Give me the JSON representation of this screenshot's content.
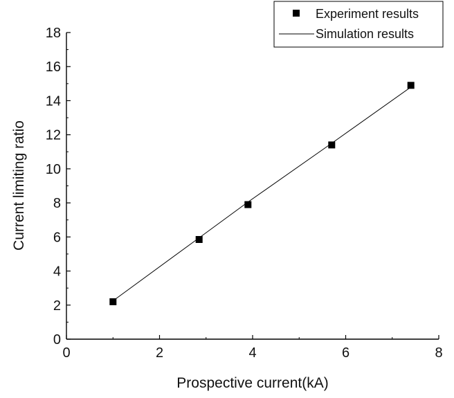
{
  "chart_data": {
    "type": "scatter",
    "xlabel": "Prospective current(kA)",
    "ylabel": "Current limiting ratio",
    "xlim": [
      0,
      8
    ],
    "ylim": [
      0,
      18
    ],
    "xticks": [
      "0",
      "2",
      "4",
      "6",
      "8"
    ],
    "yticks": [
      "0",
      "2",
      "4",
      "6",
      "8",
      "10",
      "12",
      "14",
      "16",
      "18"
    ],
    "grid": false,
    "legend_position": "top-right",
    "series": [
      {
        "name": "Experiment results",
        "type": "scatter",
        "marker": "square",
        "color": "#000000",
        "x": [
          1.0,
          2.85,
          3.9,
          5.7,
          7.4
        ],
        "y": [
          2.2,
          5.85,
          7.9,
          11.4,
          14.9
        ]
      },
      {
        "name": "Simulation results",
        "type": "line",
        "color": "#000000",
        "x": [
          1.0,
          2.85,
          3.9,
          5.7,
          7.4
        ],
        "y": [
          2.25,
          5.95,
          8.05,
          11.5,
          14.8
        ]
      }
    ]
  }
}
